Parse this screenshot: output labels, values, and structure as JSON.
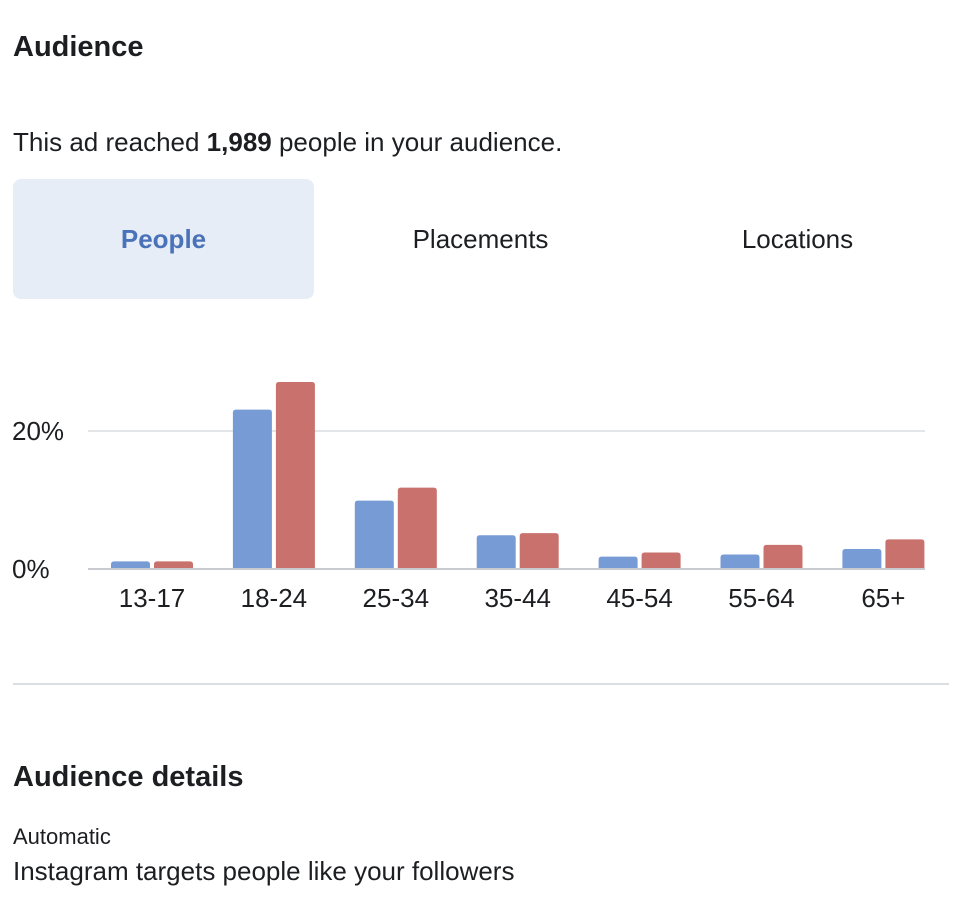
{
  "audience": {
    "title": "Audience",
    "reach_prefix": "This ad reached ",
    "reach_count": "1,989",
    "reach_suffix": " people in your audience."
  },
  "tabs": [
    {
      "label": "People",
      "active": true
    },
    {
      "label": "Placements",
      "active": false
    },
    {
      "label": "Locations",
      "active": false
    }
  ],
  "colors": {
    "series_a": "#779bd4",
    "series_b": "#c9716c",
    "active_tab_bg": "#e7edf6",
    "active_tab_text": "#4a72b9"
  },
  "chart_data": {
    "type": "bar",
    "categories": [
      "13-17",
      "18-24",
      "25-34",
      "35-44",
      "45-54",
      "55-64",
      "65+"
    ],
    "series": [
      {
        "values": [
          1.1,
          23.1,
          9.9,
          4.9,
          1.8,
          2.1,
          2.9
        ]
      },
      {
        "values": [
          1.1,
          27.1,
          11.8,
          5.2,
          2.4,
          3.5,
          4.3
        ]
      }
    ],
    "yticks": [
      {
        "value": 0,
        "label": "0%"
      },
      {
        "value": 20,
        "label": "20%"
      }
    ],
    "ylim": [
      0,
      27.1
    ],
    "grid": true,
    "legend": "none"
  },
  "details": {
    "title": "Audience details",
    "label": "Automatic",
    "value": "Instagram targets people like your followers"
  }
}
